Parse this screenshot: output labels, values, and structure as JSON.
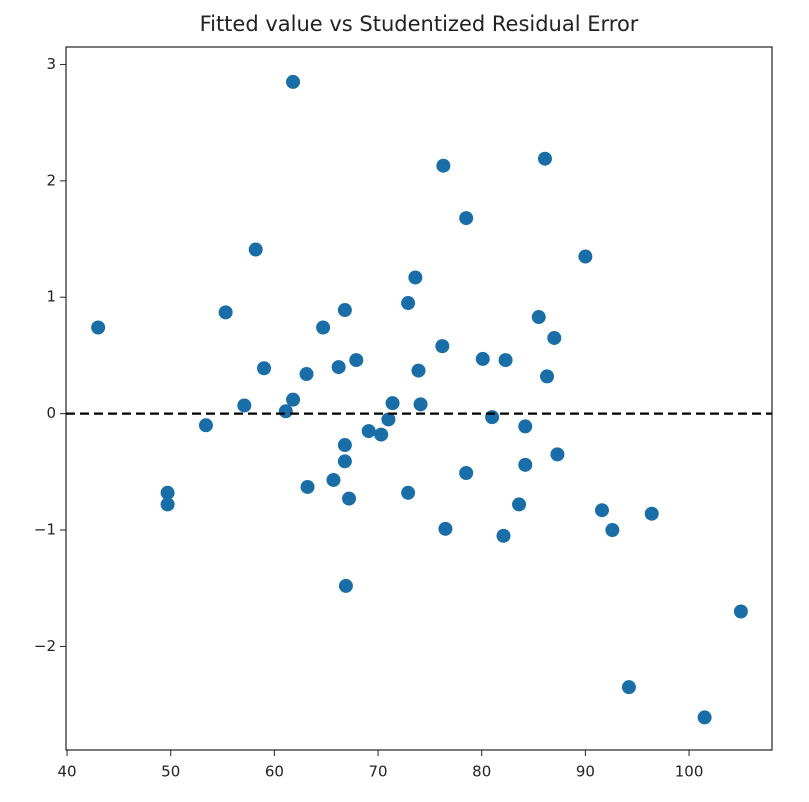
{
  "chart_data": {
    "type": "scatter",
    "title": "Fitted value vs Studentized Residual Error",
    "color": "#1a6ea8",
    "x": [
      43.0,
      49.7,
      49.7,
      53.4,
      55.3,
      57.1,
      58.2,
      59.0,
      61.1,
      61.8,
      61.8,
      63.1,
      63.2,
      64.7,
      65.7,
      66.2,
      66.8,
      66.8,
      66.8,
      67.2,
      66.9,
      67.9,
      69.1,
      70.3,
      71.0,
      71.4,
      72.9,
      72.9,
      73.6,
      73.9,
      74.1,
      76.2,
      76.3,
      76.5,
      78.5,
      78.5,
      80.1,
      81.0,
      82.1,
      82.3,
      83.6,
      84.2,
      84.2,
      85.5,
      86.1,
      86.3,
      87.0,
      87.3,
      90.0,
      91.6,
      92.6,
      94.2,
      96.4,
      101.5,
      105.0
    ],
    "values": [
      0.74,
      -0.68,
      -0.78,
      -0.1,
      0.87,
      0.07,
      1.41,
      0.39,
      0.02,
      0.12,
      2.85,
      0.34,
      -0.63,
      0.74,
      -0.57,
      0.4,
      0.89,
      -0.27,
      -0.41,
      -0.73,
      -1.48,
      0.46,
      -0.15,
      -0.18,
      -0.05,
      0.09,
      0.95,
      -0.68,
      1.17,
      0.37,
      0.08,
      0.58,
      2.13,
      -0.99,
      1.68,
      -0.51,
      0.47,
      -0.03,
      -1.05,
      0.46,
      -0.78,
      -0.11,
      -0.44,
      0.83,
      2.19,
      0.32,
      0.65,
      -0.35,
      1.35,
      -0.83,
      -1.0,
      -2.35,
      -0.86,
      -2.61,
      -1.7
    ],
    "hline": 0,
    "xlim": [
      39.9,
      108
    ],
    "xticks": [
      40,
      50,
      60,
      70,
      80,
      90,
      100
    ],
    "ylim": [
      -2.89,
      3.15
    ],
    "yticks": [
      {
        "value": -2,
        "label": "−2"
      },
      {
        "value": -1,
        "label": "−1"
      },
      0,
      1,
      2,
      3
    ]
  }
}
